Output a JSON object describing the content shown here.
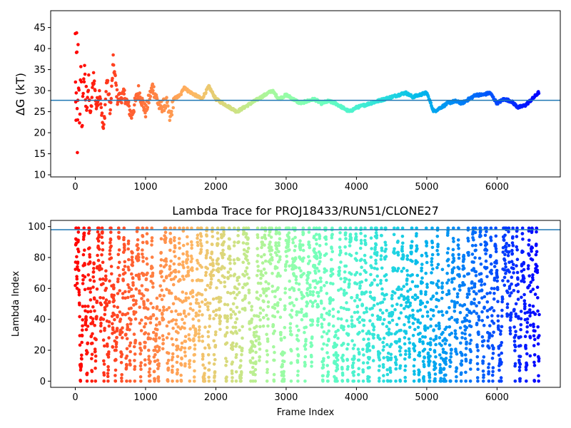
{
  "chart_data": [
    {
      "type": "scatter",
      "title": "",
      "xlabel": "",
      "ylabel": "ΔG (kT)",
      "xlim": [
        -350,
        6900
      ],
      "ylim": [
        9.5,
        49
      ],
      "xticks": [
        0,
        1000,
        2000,
        3000,
        4000,
        5000,
        6000
      ],
      "yticks": [
        10,
        15,
        20,
        25,
        30,
        35,
        40,
        45
      ],
      "hline": {
        "y": 27.7,
        "color": "#1f77b4"
      },
      "colormap": "rainbow (red at frame 0 to violet at last frame)",
      "series": [
        {
          "x": [
            0,
            10,
            20,
            30,
            40,
            60,
            80,
            100,
            120,
            150,
            180,
            220,
            260,
            300,
            350,
            400,
            450,
            500,
            540,
            600,
            700,
            800,
            900,
            1000,
            1100,
            1200,
            1300,
            1350,
            1400,
            1500,
            1550,
            1600,
            1700,
            1800,
            1900,
            2000,
            2100,
            2200,
            2300,
            2400,
            2500,
            2600,
            2700,
            2800,
            2900,
            3000,
            3100,
            3200,
            3300,
            3400,
            3500,
            3600,
            3700,
            3800,
            3900,
            4000,
            4100,
            4200,
            4300,
            4400,
            4500,
            4600,
            4700,
            4800,
            4900,
            5000,
            5100,
            5200,
            5300,
            5400,
            5500,
            5600,
            5700,
            5800,
            5900,
            6000,
            6100,
            6200,
            6300,
            6400,
            6500,
            6600
          ],
          "values": [
            42,
            18,
            47,
            12,
            38,
            25,
            32,
            22,
            35,
            27,
            31,
            24,
            34,
            26,
            30,
            20,
            33,
            25,
            37,
            28,
            29,
            24,
            30,
            25,
            31,
            26,
            27,
            23,
            28,
            29,
            31,
            30,
            29,
            28,
            31,
            28,
            27,
            26,
            25,
            26,
            27,
            28,
            29,
            30,
            28,
            29,
            28,
            27,
            27.5,
            28,
            27,
            27.5,
            27,
            26,
            25,
            26,
            26.5,
            27,
            27.5,
            28,
            28.5,
            29,
            29.5,
            28.5,
            29,
            29.5,
            25,
            26,
            27,
            27.5,
            27,
            28,
            29,
            29,
            29.5,
            27,
            28,
            27.5,
            26,
            26.5,
            28,
            29.7
          ]
        }
      ]
    },
    {
      "type": "scatter",
      "title": "Lambda Trace for PROJ18433/RUN51/CLONE27",
      "xlabel": "Frame Index",
      "ylabel": "Lambda Index",
      "xlim": [
        -350,
        6900
      ],
      "ylim": [
        -4,
        104
      ],
      "xticks": [
        0,
        1000,
        2000,
        3000,
        4000,
        5000,
        6000
      ],
      "yticks": [
        0,
        20,
        40,
        60,
        80,
        100
      ],
      "hline": {
        "y": 98,
        "color": "#1f77b4"
      },
      "colormap": "rainbow (red at frame 0 to violet at last frame)",
      "series": [
        {
          "x_range": [
            0,
            6600
          ],
          "values_range": [
            0,
            99
          ],
          "approx_points": 3300
        }
      ]
    }
  ],
  "colors": {
    "hline": "#1f77b4",
    "axis": "#000000",
    "background": "#ffffff"
  }
}
